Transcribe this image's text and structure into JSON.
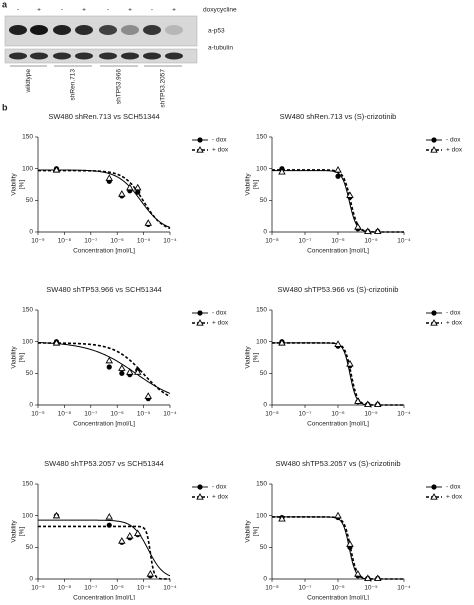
{
  "panel_a": {
    "label": "a",
    "treatment": "doxycycline",
    "signs": [
      "-",
      "+",
      "-",
      "+",
      "-",
      "+",
      "-",
      "+"
    ],
    "blots": [
      "a-p53",
      "a-tubulin"
    ],
    "lanes": [
      "wildtype",
      "shRen.713",
      "shTP53.966",
      "shTP53.2057"
    ]
  },
  "panel_b": {
    "label": "b"
  },
  "chart_data": [
    {
      "type": "dose-response",
      "title": "SW480 shRen.713 vs SCH51344",
      "xlabel": "Concentration [mol/L]",
      "ylabel": [
        "Viability",
        "[%]"
      ],
      "xscale": "log",
      "xlim": [
        1e-09,
        0.0001
      ],
      "xticks": [
        {
          "value": 1e-09,
          "label": "10⁻⁹"
        },
        {
          "value": 1e-08,
          "label": "10⁻⁸"
        },
        {
          "value": 1e-07,
          "label": "10⁻⁷"
        },
        {
          "value": 1e-06,
          "label": "10⁻⁶"
        },
        {
          "value": 1e-05,
          "label": "10⁻⁵"
        },
        {
          "value": 0.0001,
          "label": "10⁻⁴"
        }
      ],
      "ylim": [
        0,
        150
      ],
      "yticks": [
        0,
        50,
        100,
        150
      ],
      "legend": "top-right",
      "x": [
        5e-09,
        5e-07,
        1.5e-06,
        3e-06,
        6e-06,
        1.5e-05
      ],
      "series": [
        {
          "name": "- dox",
          "color": "#000000",
          "marker": "circle",
          "dashed": false,
          "values": [
            100,
            80,
            57,
            65,
            63,
            12
          ],
          "fit": {
            "top": 98,
            "bottom": 0,
            "ic50": 8e-06,
            "hill": 1
          }
        },
        {
          "name": "+ dox",
          "color": "#000000",
          "marker": "triangle",
          "dashed": true,
          "values": [
            98,
            85,
            60,
            70,
            70,
            14
          ],
          "fit": {
            "top": 97,
            "bottom": 0,
            "ic50": 1e-05,
            "hill": 1.2
          }
        }
      ]
    },
    {
      "type": "dose-response",
      "title": "SW480 shRen.713 vs (S)-crizotinib",
      "xlabel": "Concentration [mol/L]",
      "ylabel": [
        "Viability",
        "[%]"
      ],
      "xscale": "log",
      "xlim": [
        1e-08,
        0.0001
      ],
      "xticks": [
        {
          "value": 1e-08,
          "label": "10⁻⁸"
        },
        {
          "value": 1e-07,
          "label": "10⁻⁷"
        },
        {
          "value": 1e-06,
          "label": "10⁻⁶"
        },
        {
          "value": 1e-05,
          "label": "10⁻⁵"
        },
        {
          "value": 0.0001,
          "label": "10⁻⁴"
        }
      ],
      "ylim": [
        0,
        150
      ],
      "yticks": [
        0,
        50,
        100,
        150
      ],
      "legend": "top-right",
      "x": [
        2e-08,
        1e-06,
        2.3e-06,
        4e-06,
        8e-06,
        1.6e-05
      ],
      "series": [
        {
          "name": "- dox",
          "color": "#000000",
          "marker": "circle",
          "dashed": false,
          "values": [
            100,
            88,
            55,
            5,
            1,
            1
          ],
          "fit": {
            "top": 97,
            "bottom": 0,
            "ic50": 2.2e-06,
            "hill": 4
          }
        },
        {
          "name": "+ dox",
          "color": "#000000",
          "marker": "triangle",
          "dashed": true,
          "values": [
            95,
            98,
            58,
            8,
            1,
            1
          ],
          "fit": {
            "top": 98,
            "bottom": 0,
            "ic50": 2.4e-06,
            "hill": 4
          }
        }
      ]
    },
    {
      "type": "dose-response",
      "title": "SW480 shTP53.966 vs SCH51344",
      "xlabel": "Concentration [mol/L]",
      "ylabel": [
        "Viability",
        "[%]"
      ],
      "xscale": "log",
      "xlim": [
        1e-09,
        0.0001
      ],
      "xticks": [
        {
          "value": 1e-09,
          "label": "10⁻⁹"
        },
        {
          "value": 1e-08,
          "label": "10⁻⁸"
        },
        {
          "value": 1e-07,
          "label": "10⁻⁷"
        },
        {
          "value": 1e-06,
          "label": "10⁻⁶"
        },
        {
          "value": 1e-05,
          "label": "10⁻⁵"
        },
        {
          "value": 0.0001,
          "label": "10⁻⁴"
        }
      ],
      "ylim": [
        0,
        150
      ],
      "yticks": [
        0,
        50,
        100,
        150
      ],
      "legend": "top-right",
      "x": [
        5e-09,
        5e-07,
        1.5e-06,
        3e-06,
        6e-06,
        1.5e-05
      ],
      "series": [
        {
          "name": "- dox",
          "color": "#000000",
          "marker": "circle",
          "dashed": false,
          "values": [
            100,
            60,
            50,
            48,
            55,
            10
          ],
          "fit": {
            "top": 100,
            "bottom": 0,
            "ic50": 5e-06,
            "hill": 0.5
          }
        },
        {
          "name": "+ dox",
          "color": "#000000",
          "marker": "triangle",
          "dashed": true,
          "values": [
            98,
            70,
            58,
            52,
            52,
            14
          ],
          "fit": {
            "top": 98,
            "bottom": 0,
            "ic50": 1e-05,
            "hill": 0.8
          }
        }
      ]
    },
    {
      "type": "dose-response",
      "title": "SW480 shTP53.966 vs (S)-crizotinib",
      "xlabel": "Concentration [mol/L]",
      "ylabel": [
        "Viability",
        "[%]"
      ],
      "xscale": "log",
      "xlim": [
        1e-08,
        0.0001
      ],
      "xticks": [
        {
          "value": 1e-08,
          "label": "10⁻⁸"
        },
        {
          "value": 1e-07,
          "label": "10⁻⁷"
        },
        {
          "value": 1e-06,
          "label": "10⁻⁶"
        },
        {
          "value": 1e-05,
          "label": "10⁻⁵"
        },
        {
          "value": 0.0001,
          "label": "10⁻⁴"
        }
      ],
      "ylim": [
        0,
        150
      ],
      "yticks": [
        0,
        50,
        100,
        150
      ],
      "legend": "top-right",
      "x": [
        2e-08,
        1e-06,
        2.3e-06,
        4e-06,
        8e-06,
        1.6e-05
      ],
      "series": [
        {
          "name": "- dox",
          "color": "#000000",
          "marker": "circle",
          "dashed": false,
          "values": [
            100,
            93,
            62,
            5,
            1,
            1
          ],
          "fit": {
            "top": 98,
            "bottom": 0,
            "ic50": 2.3e-06,
            "hill": 4.5
          }
        },
        {
          "name": "+ dox",
          "color": "#000000",
          "marker": "triangle",
          "dashed": true,
          "values": [
            98,
            96,
            65,
            6,
            1,
            1
          ],
          "fit": {
            "top": 98,
            "bottom": 0,
            "ic50": 2.5e-06,
            "hill": 4.5
          }
        }
      ]
    },
    {
      "type": "dose-response",
      "title": "SW480 shTP53.2057 vs SCH51344",
      "xlabel": "Concentration [mol/L]",
      "ylabel": [
        "Viability",
        "[%]"
      ],
      "xscale": "log",
      "xlim": [
        1e-09,
        0.0001
      ],
      "xticks": [
        {
          "value": 1e-09,
          "label": "10⁻⁹"
        },
        {
          "value": 1e-08,
          "label": "10⁻⁸"
        },
        {
          "value": 1e-07,
          "label": "10⁻⁷"
        },
        {
          "value": 1e-06,
          "label": "10⁻⁶"
        },
        {
          "value": 1e-05,
          "label": "10⁻⁵"
        },
        {
          "value": 0.0001,
          "label": "10⁻⁴"
        }
      ],
      "ylim": [
        0,
        150
      ],
      "yticks": [
        0,
        50,
        100,
        150
      ],
      "legend": "top-right",
      "x": [
        5e-09,
        5e-07,
        1.5e-06,
        3e-06,
        6e-06,
        1.8e-05
      ],
      "series": [
        {
          "name": "- dox",
          "color": "#000000",
          "marker": "circle",
          "dashed": false,
          "values": [
            100,
            85,
            58,
            65,
            70,
            5
          ],
          "fit": {
            "top": 93,
            "bottom": 0,
            "ic50": 1.5e-05,
            "hill": 1.5
          }
        },
        {
          "name": "+ dox",
          "color": "#000000",
          "marker": "triangle",
          "dashed": true,
          "values": [
            100,
            98,
            60,
            68,
            72,
            8
          ],
          "fit": {
            "top": 83,
            "bottom": 0,
            "ic50": 1.8e-05,
            "hill": 6
          }
        }
      ]
    },
    {
      "type": "dose-response",
      "title": "SW480 shTP53.2057 vs (S)-crizotinib",
      "xlabel": "Concentration [mol/L]",
      "ylabel": [
        "Viability",
        "[%]"
      ],
      "xscale": "log",
      "xlim": [
        1e-08,
        0.0001
      ],
      "xticks": [
        {
          "value": 1e-08,
          "label": "10⁻⁸"
        },
        {
          "value": 1e-07,
          "label": "10⁻⁷"
        },
        {
          "value": 1e-06,
          "label": "10⁻⁶"
        },
        {
          "value": 1e-05,
          "label": "10⁻⁵"
        },
        {
          "value": 0.0001,
          "label": "10⁻⁴"
        }
      ],
      "ylim": [
        0,
        150
      ],
      "yticks": [
        0,
        50,
        100,
        150
      ],
      "legend": "top-right",
      "x": [
        2e-08,
        1e-06,
        2.3e-06,
        4e-06,
        8e-06,
        1.6e-05
      ],
      "series": [
        {
          "name": "- dox",
          "color": "#000000",
          "marker": "circle",
          "dashed": false,
          "values": [
            97,
            97,
            50,
            5,
            1,
            1
          ],
          "fit": {
            "top": 98,
            "bottom": 0,
            "ic50": 2.2e-06,
            "hill": 4.5
          }
        },
        {
          "name": "+ dox",
          "color": "#000000",
          "marker": "triangle",
          "dashed": true,
          "values": [
            95,
            100,
            55,
            8,
            1,
            1
          ],
          "fit": {
            "top": 98,
            "bottom": 0,
            "ic50": 2.4e-06,
            "hill": 4.5
          }
        }
      ]
    }
  ]
}
